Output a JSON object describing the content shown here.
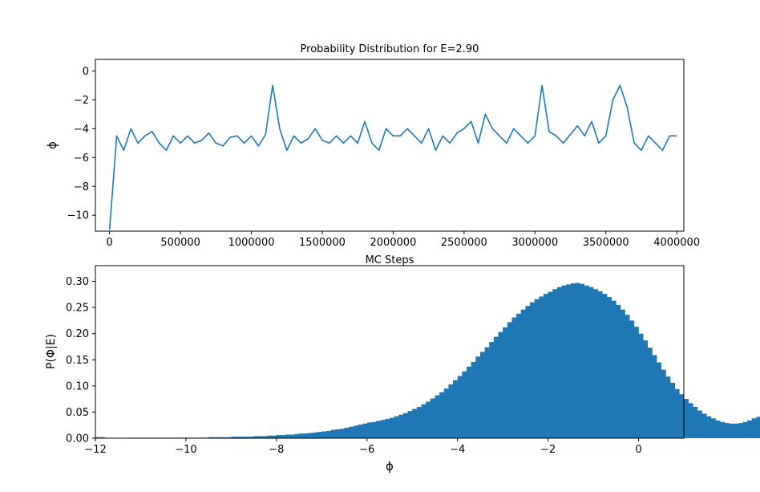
{
  "chart_data": [
    {
      "type": "line",
      "title": "Probability Distribution for E=2.90",
      "xlabel": "MC Steps",
      "ylabel": "ɸ",
      "xlim": [
        -100000,
        4050000
      ],
      "ylim": [
        -11.1,
        0.8
      ],
      "x_ticks": [
        0,
        500000,
        1000000,
        1500000,
        2000000,
        2500000,
        3000000,
        3500000,
        4000000
      ],
      "x_tick_labels": [
        "0",
        "500000",
        "1000000",
        "1500000",
        "2000000",
        "2500000",
        "3000000",
        "3500000",
        "4000000"
      ],
      "y_ticks": [
        0,
        -2,
        -4,
        -6,
        -8,
        -10
      ],
      "y_tick_labels": [
        "0",
        "−2",
        "−4",
        "−6",
        "−8",
        "−10"
      ],
      "grid": false,
      "color": "#1f77b4",
      "series": [
        {
          "x": [
            0,
            50000,
            100000,
            150000,
            200000,
            250000,
            300000,
            350000,
            400000,
            450000,
            500000,
            550000,
            600000,
            650000,
            700000,
            750000,
            800000,
            850000,
            900000,
            950000,
            1000000,
            1050000,
            1100000,
            1150000,
            1200000,
            1250000,
            1300000,
            1350000,
            1400000,
            1450000,
            1500000,
            1550000,
            1600000,
            1650000,
            1700000,
            1750000,
            1800000,
            1850000,
            1900000,
            1950000,
            2000000,
            2050000,
            2100000,
            2150000,
            2200000,
            2250000,
            2300000,
            2350000,
            2400000,
            2450000,
            2500000,
            2550000,
            2600000,
            2650000,
            2700000,
            2750000,
            2800000,
            2850000,
            2900000,
            2950000,
            3000000,
            3050000,
            3100000,
            3150000,
            3200000,
            3250000,
            3300000,
            3350000,
            3400000,
            3450000,
            3500000,
            3550000,
            3600000,
            3650000,
            3700000,
            3750000,
            3800000,
            3850000,
            3900000,
            3950000,
            4000000
          ],
          "y": [
            -11.0,
            -4.5,
            -5.5,
            -4.0,
            -5.0,
            -4.5,
            -4.2,
            -5.0,
            -5.5,
            -4.5,
            -5.0,
            -4.5,
            -5.0,
            -4.8,
            -4.3,
            -5.0,
            -5.2,
            -4.6,
            -4.5,
            -5.0,
            -4.5,
            -5.2,
            -4.4,
            -1.0,
            -4.0,
            -5.5,
            -4.5,
            -5.0,
            -4.7,
            -4.0,
            -4.8,
            -5.0,
            -4.5,
            -5.0,
            -4.5,
            -5.0,
            -3.5,
            -5.0,
            -5.5,
            -4.0,
            -4.5,
            -4.5,
            -4.0,
            -4.5,
            -5.0,
            -4.0,
            -5.5,
            -4.5,
            -5.0,
            -4.3,
            -4.0,
            -3.5,
            -5.0,
            -3.0,
            -4.0,
            -4.5,
            -5.0,
            -4.0,
            -4.5,
            -5.0,
            -4.5,
            -1.0,
            -4.2,
            -4.5,
            -5.0,
            -4.4,
            -3.8,
            -4.5,
            -3.5,
            -5.0,
            -4.5,
            -2.0,
            -1.0,
            -2.5,
            -5.0,
            -5.5,
            -4.5,
            -5.0,
            -5.5,
            -4.5,
            -4.5
          ]
        }
      ]
    },
    {
      "type": "bar",
      "title": "",
      "xlabel": "ɸ",
      "ylabel": "P(Φ|E)",
      "xlim": [
        -12,
        1
      ],
      "ylim": [
        0,
        0.33
      ],
      "x_ticks": [
        -12,
        -10,
        -8,
        -6,
        -4,
        -2,
        0
      ],
      "x_tick_labels": [
        "−12",
        "−10",
        "−8",
        "−6",
        "−4",
        "−2",
        "0"
      ],
      "y_ticks": [
        0.0,
        0.05,
        0.1,
        0.15,
        0.2,
        0.25,
        0.3
      ],
      "y_tick_labels": [
        "0.00",
        "0.05",
        "0.10",
        "0.15",
        "0.20",
        "0.25",
        "0.30"
      ],
      "grid": false,
      "color": "#1f77b4",
      "bin_start": -12,
      "bin_width": 0.1,
      "values": [
        0.002,
        0.002,
        0.0,
        0.0,
        0.0,
        0.0,
        0.0,
        0.001,
        0.001,
        0.001,
        0.001,
        0.001,
        0.001,
        0.001,
        0.001,
        0.001,
        0.001,
        0.001,
        0.001,
        0.001,
        0.001,
        0.001,
        0.001,
        0.001,
        0.001,
        0.002,
        0.002,
        0.002,
        0.002,
        0.002,
        0.003,
        0.003,
        0.003,
        0.003,
        0.003,
        0.004,
        0.004,
        0.004,
        0.005,
        0.005,
        0.006,
        0.006,
        0.007,
        0.007,
        0.008,
        0.009,
        0.009,
        0.01,
        0.011,
        0.012,
        0.013,
        0.014,
        0.016,
        0.017,
        0.018,
        0.02,
        0.022,
        0.024,
        0.026,
        0.028,
        0.03,
        0.031,
        0.033,
        0.035,
        0.037,
        0.039,
        0.042,
        0.045,
        0.048,
        0.052,
        0.056,
        0.06,
        0.065,
        0.07,
        0.076,
        0.082,
        0.088,
        0.095,
        0.103,
        0.111,
        0.119,
        0.128,
        0.137,
        0.146,
        0.156,
        0.165,
        0.174,
        0.184,
        0.194,
        0.203,
        0.212,
        0.222,
        0.231,
        0.238,
        0.246,
        0.253,
        0.26,
        0.266,
        0.271,
        0.276,
        0.28,
        0.285,
        0.289,
        0.292,
        0.294,
        0.296,
        0.297,
        0.295,
        0.292,
        0.289,
        0.285,
        0.281,
        0.276,
        0.27,
        0.263,
        0.255,
        0.246,
        0.236,
        0.225,
        0.213,
        0.2,
        0.187,
        0.173,
        0.159,
        0.145,
        0.131,
        0.118,
        0.106,
        0.094,
        0.084,
        0.075,
        0.067,
        0.06,
        0.053,
        0.047,
        0.042,
        0.038,
        0.034,
        0.031,
        0.029,
        0.028,
        0.028,
        0.029,
        0.031,
        0.034,
        0.038,
        0.041,
        0.043,
        0.044,
        0.043,
        0.04,
        0.035,
        0.029,
        0.022,
        0.016,
        0.011,
        0.007,
        0.004,
        0.002,
        0.001,
        0.001,
        0.0,
        0.0,
        0.0,
        0.0,
        0.0,
        0.0,
        0.0,
        0.0,
        0.0,
        0.0,
        0.0,
        0.0,
        0.0,
        0.0
      ]
    }
  ]
}
